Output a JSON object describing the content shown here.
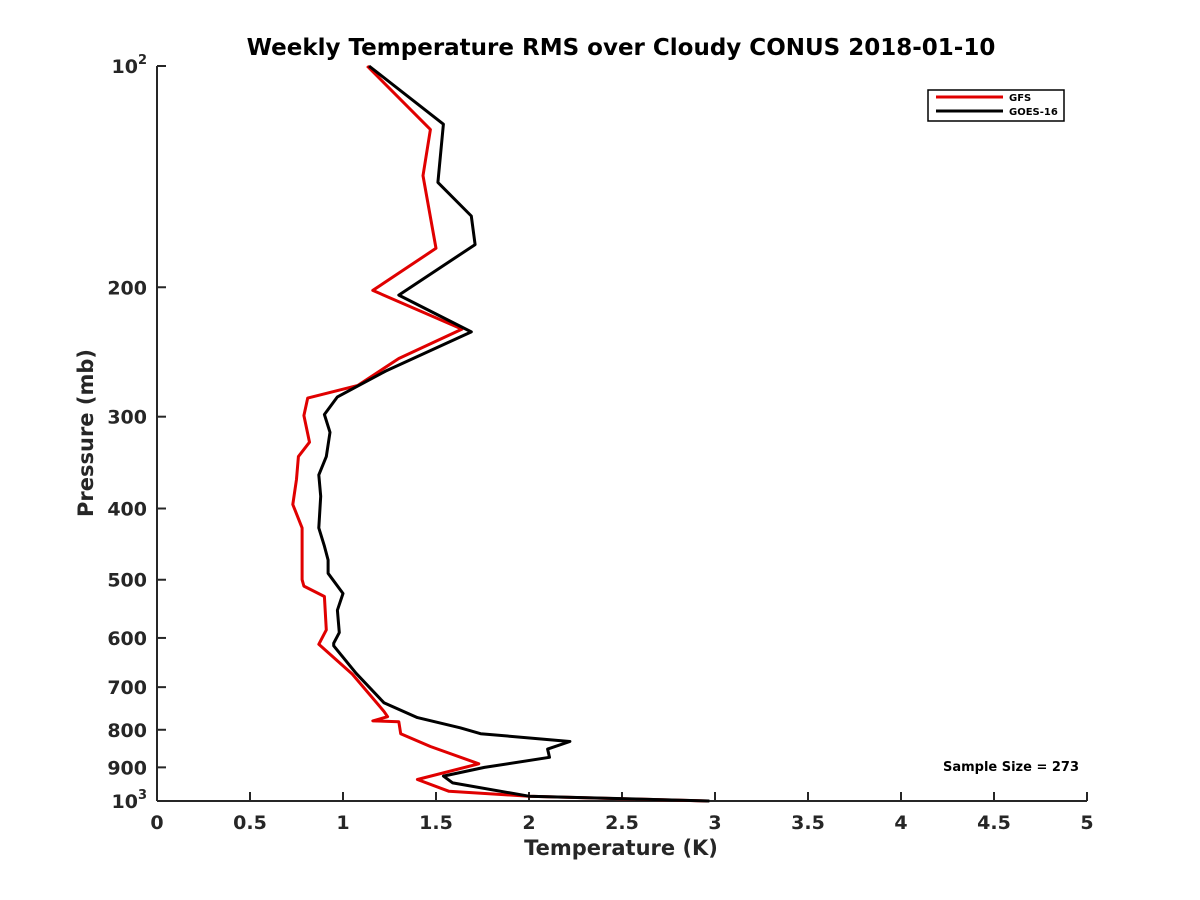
{
  "chart_data": {
    "type": "line",
    "title": "Weekly Temperature RMS over Cloudy CONUS 2018-01-10",
    "xlabel": "Temperature (K)",
    "ylabel": "Pressure (mb)",
    "xlim": [
      0,
      5
    ],
    "ylim": [
      100,
      1000
    ],
    "y_scale": "log",
    "y_reversed": true,
    "grid": false,
    "legend_position": "top-right",
    "x_ticks": [
      0,
      0.5,
      1,
      1.5,
      2,
      2.5,
      3,
      3.5,
      4,
      4.5,
      5
    ],
    "x_tick_labels": [
      "0",
      "0.5",
      "1",
      "1.5",
      "2",
      "2.5",
      "3",
      "3.5",
      "4",
      "4.5",
      "5"
    ],
    "y_ticks": [
      100,
      200,
      300,
      400,
      500,
      600,
      700,
      800,
      900,
      1000
    ],
    "y_tick_labels": [
      {
        "base": "10",
        "sup": "2"
      },
      {
        "base": "200",
        "sup": ""
      },
      {
        "base": "300",
        "sup": ""
      },
      {
        "base": "400",
        "sup": ""
      },
      {
        "base": "500",
        "sup": ""
      },
      {
        "base": "600",
        "sup": ""
      },
      {
        "base": "700",
        "sup": ""
      },
      {
        "base": "800",
        "sup": ""
      },
      {
        "base": "900",
        "sup": ""
      },
      {
        "base": "10",
        "sup": "3"
      }
    ],
    "series": [
      {
        "name": "GFS",
        "color": "#e00000",
        "x": [
          1.13,
          1.47,
          1.43,
          1.5,
          1.16,
          1.64,
          1.3,
          1.08,
          0.81,
          0.79,
          0.82,
          0.76,
          0.75,
          0.73,
          0.78,
          0.78,
          0.79,
          0.9,
          0.91,
          0.87,
          1.05,
          1.22,
          1.24,
          1.16,
          1.3,
          1.31,
          1.47,
          1.73,
          1.4,
          1.57,
          2.0,
          2.96
        ],
        "y": [
          100,
          122,
          141,
          177,
          202,
          228,
          250,
          272,
          283,
          299,
          325,
          340,
          365,
          395,
          425,
          500,
          510,
          527,
          585,
          612,
          672,
          755,
          768,
          778,
          780,
          810,
          843,
          890,
          935,
          970,
          985,
          1000
        ]
      },
      {
        "name": "GOES-16",
        "color": "#000000",
        "x": [
          1.14,
          1.54,
          1.51,
          1.69,
          1.71,
          1.3,
          1.69,
          1.23,
          0.97,
          0.9,
          0.93,
          0.91,
          0.87,
          0.88,
          0.87,
          0.9,
          0.92,
          0.92,
          1.0,
          0.97,
          0.98,
          0.95,
          0.95,
          1.07,
          1.22,
          1.4,
          1.63,
          1.74,
          2.22,
          2.1,
          2.11,
          1.76,
          1.54,
          1.59,
          2.0,
          2.97
        ],
        "y": [
          100,
          120,
          144,
          160,
          175,
          205,
          230,
          260,
          282,
          298,
          315,
          340,
          360,
          385,
          425,
          450,
          470,
          490,
          522,
          550,
          590,
          610,
          615,
          670,
          735,
          770,
          795,
          810,
          830,
          850,
          872,
          900,
          925,
          945,
          985,
          1000
        ]
      }
    ],
    "annotations": [
      "Sample Size = 273"
    ]
  }
}
